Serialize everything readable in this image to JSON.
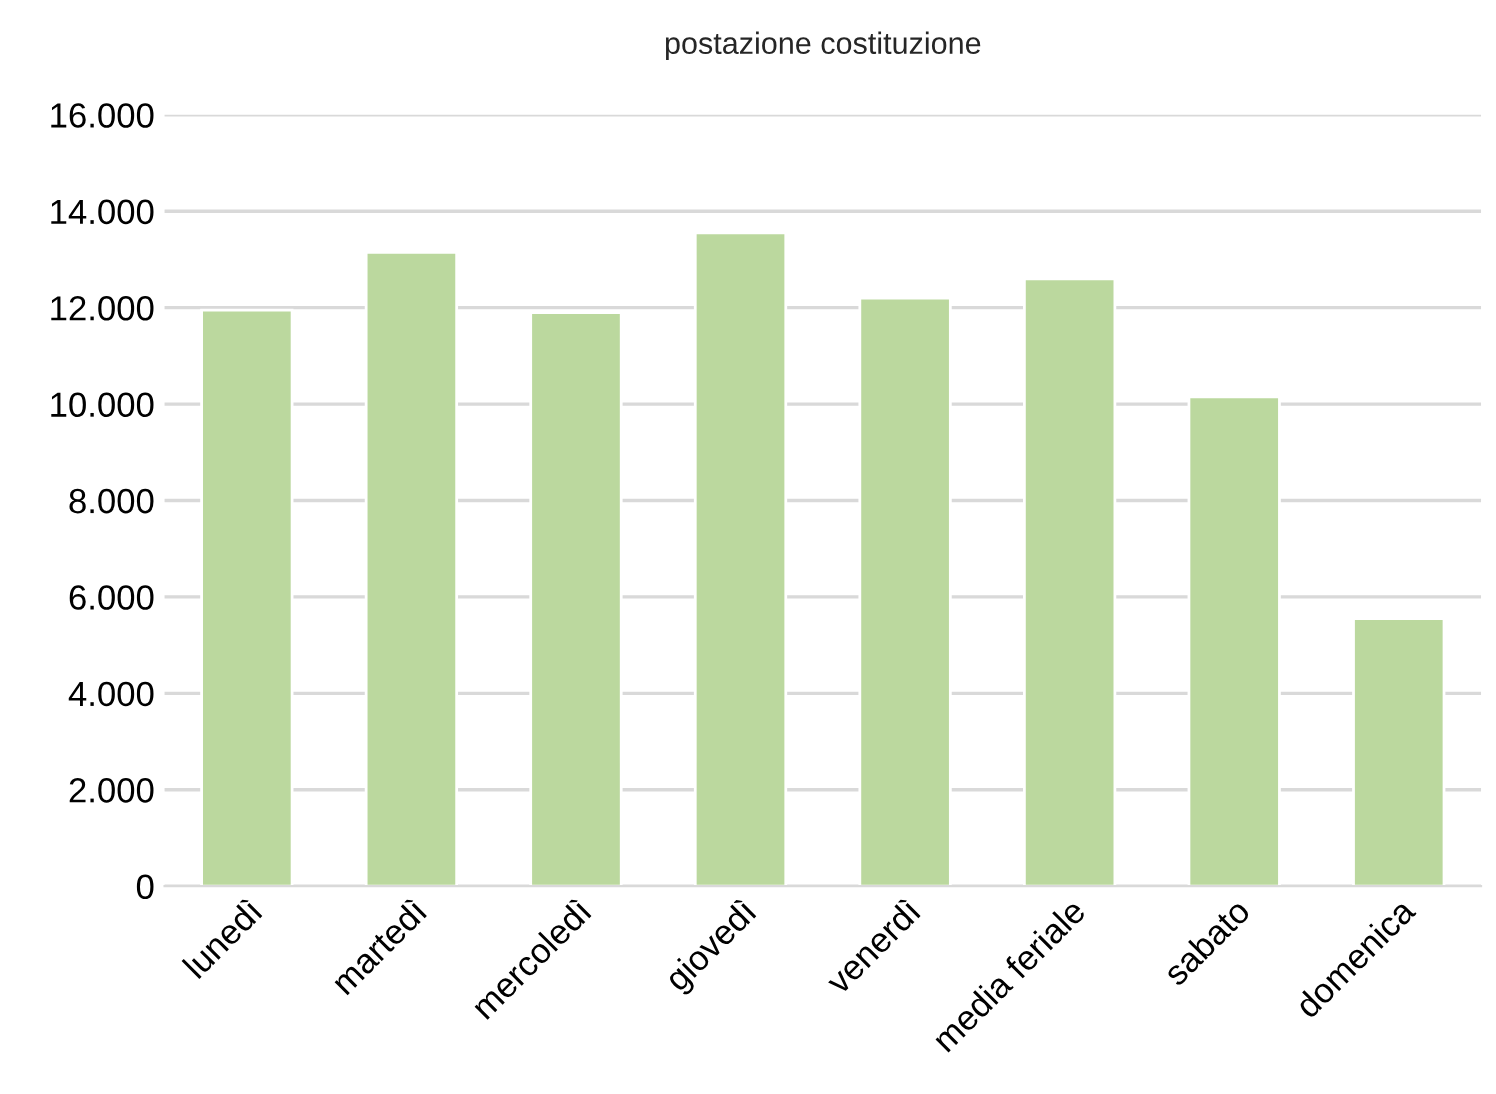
{
  "chart_data": {
    "type": "bar",
    "title": "postazione costituzione",
    "categories": [
      "lunedì",
      "martedì",
      "mercoledì",
      "giovedì",
      "venerdì",
      "media feriale",
      "sabato",
      "domenica"
    ],
    "values": [
      11950,
      13150,
      11900,
      13550,
      12200,
      12600,
      10150,
      5550
    ],
    "color": "#bbd89e",
    "ylim": [
      0,
      16000
    ],
    "yticks": [
      {
        "value": 0,
        "label": "0"
      },
      {
        "value": 2000,
        "label": "2.000"
      },
      {
        "value": 4000,
        "label": "4.000"
      },
      {
        "value": 6000,
        "label": "6.000"
      },
      {
        "value": 8000,
        "label": "8.000"
      },
      {
        "value": 10000,
        "label": "10.000"
      },
      {
        "value": 12000,
        "label": "12.000"
      },
      {
        "value": 14000,
        "label": "14.000"
      },
      {
        "value": 16000,
        "label": "16.000"
      }
    ],
    "grid": "y"
  }
}
